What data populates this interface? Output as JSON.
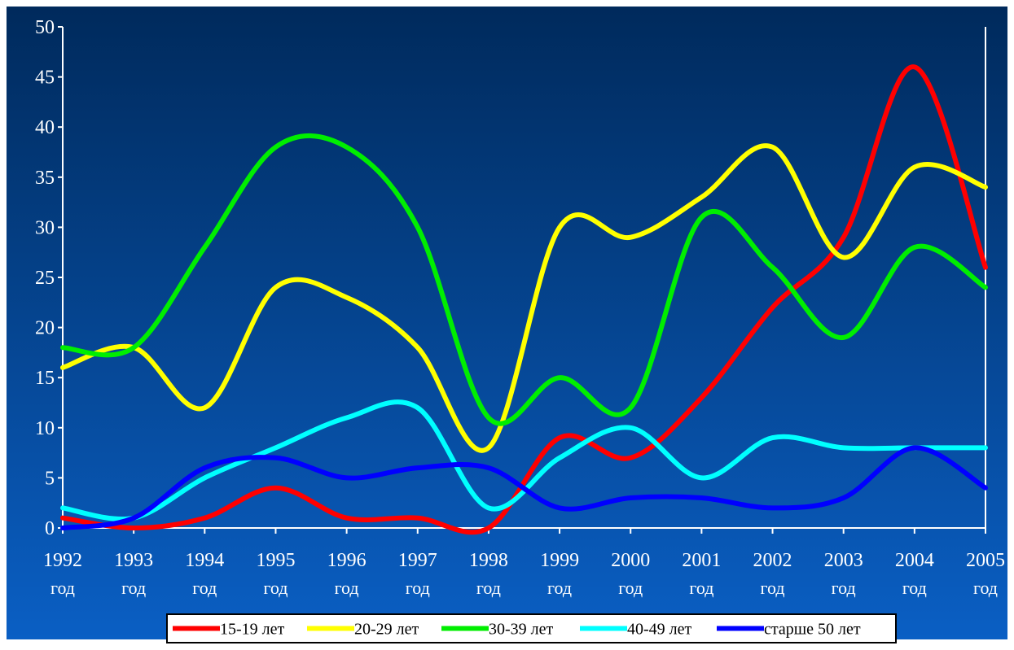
{
  "colors": {
    "background_top": "#002a5c",
    "background_bottom": "#0a5fc4",
    "axis": "#ffffff",
    "text": "#ffffff",
    "legend_bg": "#ffffff",
    "legend_text": "#000000"
  },
  "chart_data": {
    "type": "line",
    "title": "",
    "xlabel": "",
    "ylabel": "",
    "ylim": [
      0,
      50
    ],
    "yticks": [
      0,
      5,
      10,
      15,
      20,
      25,
      30,
      35,
      40,
      45,
      50
    ],
    "categories": [
      {
        "year": "1992",
        "unit": "год"
      },
      {
        "year": "1993",
        "unit": "год"
      },
      {
        "year": "1994",
        "unit": "год"
      },
      {
        "year": "1995",
        "unit": "год"
      },
      {
        "year": "1996",
        "unit": "год"
      },
      {
        "year": "1997",
        "unit": "год"
      },
      {
        "year": "1998",
        "unit": "год"
      },
      {
        "year": "1999",
        "unit": "год"
      },
      {
        "year": "2000",
        "unit": "год"
      },
      {
        "year": "2001",
        "unit": "год"
      },
      {
        "year": "2002",
        "unit": "год"
      },
      {
        "year": "2003",
        "unit": "год"
      },
      {
        "year": "2004",
        "unit": "год"
      },
      {
        "year": "2005",
        "unit": "год"
      }
    ],
    "smooth": true,
    "grid": false,
    "legend_position": "bottom",
    "series": [
      {
        "name": "15-19 лет",
        "color": "#ff0000",
        "values": [
          1,
          0,
          1,
          4,
          1,
          1,
          0,
          9,
          7,
          13,
          22,
          29,
          46,
          26
        ]
      },
      {
        "name": "20-29 лет",
        "color": "#ffff00",
        "values": [
          16,
          18,
          12,
          24,
          23,
          18,
          8,
          30,
          29,
          33,
          38,
          27,
          36,
          34
        ]
      },
      {
        "name": "30-39 лет",
        "color": "#00ee00",
        "values": [
          18,
          18,
          28,
          38,
          38,
          30,
          11,
          15,
          12,
          31,
          26,
          19,
          28,
          24
        ]
      },
      {
        "name": "40-49 лет",
        "color": "#00ffff",
        "values": [
          2,
          1,
          5,
          8,
          11,
          12,
          2,
          7,
          10,
          5,
          9,
          8,
          8,
          8
        ]
      },
      {
        "name": "старше 50 лет",
        "color": "#0000ff",
        "values": [
          0,
          1,
          6,
          7,
          5,
          6,
          6,
          2,
          3,
          3,
          2,
          3,
          8,
          4
        ]
      }
    ]
  }
}
